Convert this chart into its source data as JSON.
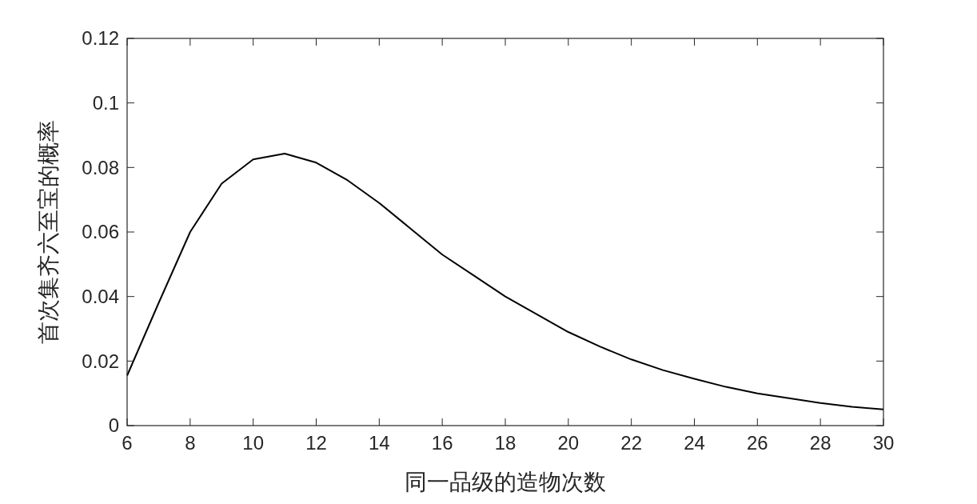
{
  "chart_data": {
    "type": "line",
    "xlabel": "同一品级的造物次数",
    "ylabel": "首次集齐六至宝的概率",
    "x": [
      6,
      7,
      8,
      9,
      10,
      11,
      12,
      13,
      14,
      15,
      16,
      17,
      18,
      19,
      20,
      21,
      22,
      23,
      24,
      25,
      26,
      27,
      28,
      29,
      30
    ],
    "series": [
      {
        "color": "#000000",
        "values": [
          0.0155,
          0.038,
          0.06,
          0.075,
          0.0825,
          0.0843,
          0.0815,
          0.076,
          0.069,
          0.061,
          0.053,
          0.0465,
          0.04,
          0.0345,
          0.029,
          0.0245,
          0.0205,
          0.0172,
          0.0145,
          0.012,
          0.01,
          0.0085,
          0.007,
          0.0058,
          0.005
        ]
      }
    ],
    "xlim": [
      6,
      30
    ],
    "xticks": [
      6,
      8,
      10,
      12,
      14,
      16,
      18,
      20,
      22,
      24,
      26,
      28,
      30
    ],
    "ylim": [
      0,
      0.12
    ],
    "yticks": [
      0,
      0.02,
      0.04,
      0.06,
      0.08,
      {
        "value": 0.1,
        "label": "0.1"
      },
      0.12
    ],
    "grid": false
  }
}
